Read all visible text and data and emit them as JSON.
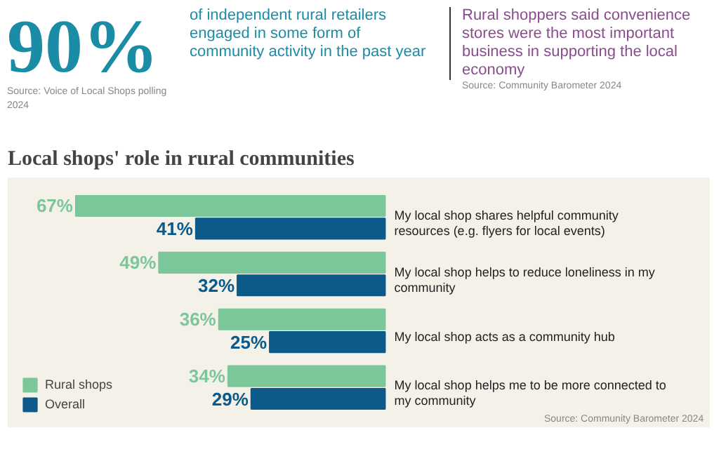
{
  "chart_data": {
    "type": "bar",
    "orientation": "horizontal",
    "title": "Local shops' role in rural communities",
    "annotations": [
      "90%",
      "of independent rural retailers engaged in some form of community activity in the past year",
      "Source: Voice of Local Shops polling 2024",
      "Rural shoppers said convenience stores were the most important business in supporting the local economy",
      "Source: Community Barometer 2024",
      "Source: Community Barometer 2024"
    ],
    "categories": [
      "My local shop shares helpful community resources (e.g. flyers for local events)",
      "My local shop helps to reduce loneliness in my community",
      "My local shop acts as a community hub",
      "My local shop helps me to be more connected to my community"
    ],
    "series": [
      {
        "name": "Rural shops",
        "color": "#7cc79a",
        "values": [
          67,
          49,
          36,
          34
        ],
        "value_labels": [
          "67%",
          "49%",
          "36%",
          "34%"
        ]
      },
      {
        "name": "Overall",
        "color": "#0b5a8a",
        "values": [
          41,
          32,
          25,
          29
        ],
        "value_labels": [
          "41%",
          "32%",
          "25%",
          "29%"
        ]
      }
    ],
    "legend": "bottom left"
  }
}
